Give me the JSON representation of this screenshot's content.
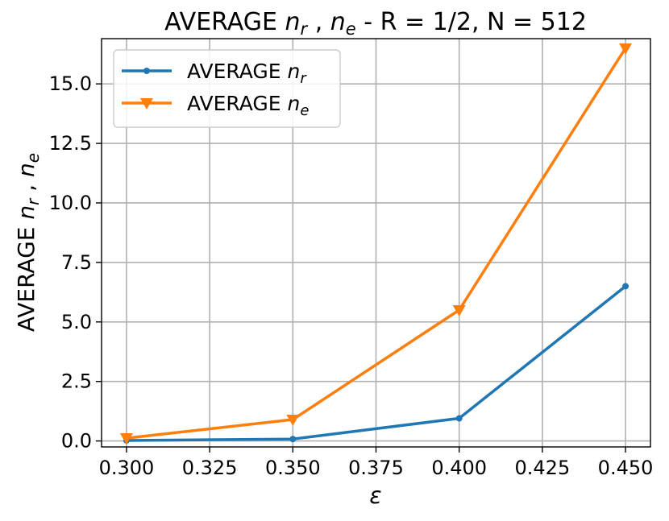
{
  "chart_data": {
    "type": "line",
    "title_parts": [
      "AVERAGE ",
      "n",
      "r",
      " , ",
      "n",
      "e",
      " - R = 1/2, N = 512"
    ],
    "xlabel": "ε",
    "ylabel_parts": [
      "AVERAGE ",
      "n",
      "r",
      " , ",
      "n",
      "e"
    ],
    "xlim": [
      0.2925,
      0.4575
    ],
    "ylim": [
      -0.25,
      16.9
    ],
    "xticks": [
      0.3,
      0.325,
      0.35,
      0.375,
      0.4,
      0.425,
      0.45
    ],
    "xtick_labels": [
      "0.300",
      "0.325",
      "0.350",
      "0.375",
      "0.400",
      "0.425",
      "0.450"
    ],
    "yticks": [
      0,
      2.5,
      5,
      7.5,
      10,
      12.5,
      15
    ],
    "ytick_labels": [
      "0.0",
      "2.5",
      "5.0",
      "7.5",
      "10.0",
      "12.5",
      "15.0"
    ],
    "grid": true,
    "legend_position": "top-left",
    "x": [
      0.3,
      0.35,
      0.4,
      0.45
    ],
    "series": [
      {
        "name_parts": [
          "AVERAGE ",
          "n",
          "r"
        ],
        "marker": "circle",
        "color": "#1f77b4",
        "values": [
          0.02,
          0.08,
          0.95,
          6.5
        ]
      },
      {
        "name_parts": [
          "AVERAGE ",
          "n",
          "e"
        ],
        "marker": "triangle-down",
        "color": "#ff7f0e",
        "values": [
          0.12,
          0.9,
          5.5,
          16.5
        ]
      }
    ]
  }
}
